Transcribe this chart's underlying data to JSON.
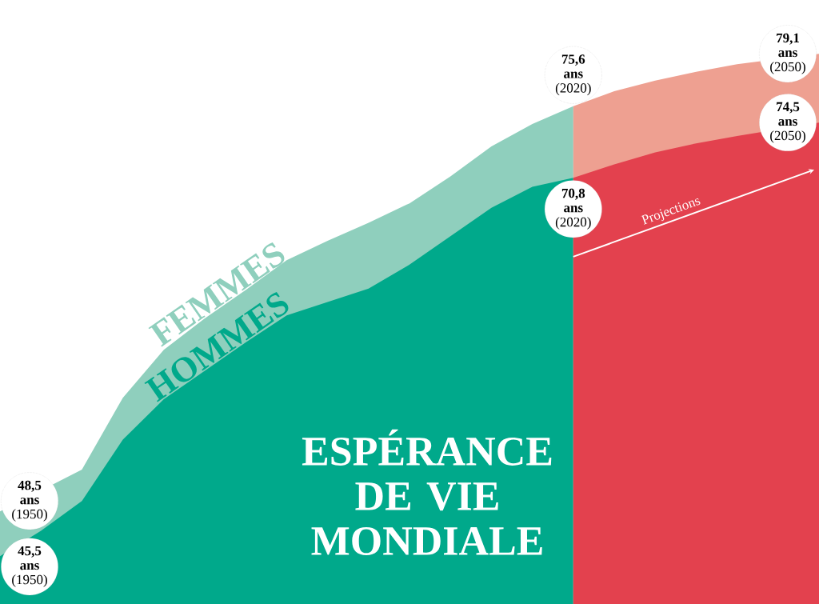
{
  "chart_data": {
    "type": "area",
    "title": "ESPÉRANCE DE VIE MONDIALE",
    "annotations": [
      "Projections"
    ],
    "categories": [
      null,
      null,
      null,
      null,
      null,
      null,
      null,
      null,
      null,
      null,
      null,
      null,
      null,
      null,
      null,
      null,
      null,
      null,
      null,
      null,
      null
    ],
    "series": [
      {
        "name": "FEMMES",
        "color": "#8fcfbd",
        "values": [
          48.5,
          null,
          51.3,
          56.1,
          59.3,
          61.4,
          63.3,
          65.3,
          66.6,
          67.8,
          69.1,
          70.9,
          72.9,
          74.4,
          75.6,
          null,
          null,
          null,
          null,
          null,
          null
        ],
        "value_labels": [
          "**48,5 ans** (1950)",
          null,
          null,
          null,
          null,
          null,
          null,
          null,
          null,
          null,
          null,
          null,
          null,
          null,
          "**75,6 ans** (2020)",
          null,
          null,
          null,
          null,
          null,
          null
        ]
      },
      {
        "name": "HOMMES",
        "color": "#00a98b",
        "values": [
          45.5,
          47.2,
          49.2,
          53.3,
          56.0,
          57.9,
          59.8,
          61.6,
          62.5,
          63.4,
          65.0,
          66.9,
          68.8,
          70.2,
          70.8,
          null,
          null,
          null,
          null,
          null,
          null
        ],
        "value_labels": [
          "**45,5 ans** (1950)",
          null,
          null,
          null,
          null,
          null,
          null,
          null,
          null,
          null,
          null,
          null,
          null,
          null,
          "**70,8 ans** (2020)",
          null,
          null,
          null,
          null,
          null,
          null
        ]
      },
      {
        "color": "#eea091",
        "values": [
          null,
          null,
          null,
          null,
          null,
          null,
          null,
          null,
          null,
          null,
          null,
          null,
          null,
          null,
          75.6,
          76.6,
          77.3,
          77.9,
          78.4,
          null,
          79.1
        ],
        "value_labels": [
          null,
          null,
          null,
          null,
          null,
          null,
          null,
          null,
          null,
          null,
          null,
          null,
          null,
          null,
          null,
          null,
          null,
          null,
          null,
          null,
          "**79,1 ans** (2050)"
        ]
      },
      {
        "color": "#e3414e",
        "values": [
          null,
          null,
          null,
          null,
          null,
          null,
          null,
          null,
          null,
          null,
          null,
          null,
          null,
          null,
          70.8,
          71.7,
          72.5,
          73.1,
          73.6,
          null,
          74.5
        ],
        "value_labels": [
          null,
          null,
          null,
          null,
          null,
          null,
          null,
          null,
          null,
          null,
          null,
          null,
          null,
          null,
          null,
          null,
          null,
          null,
          null,
          null,
          "**74,5 ans** (2050)"
        ]
      }
    ]
  }
}
